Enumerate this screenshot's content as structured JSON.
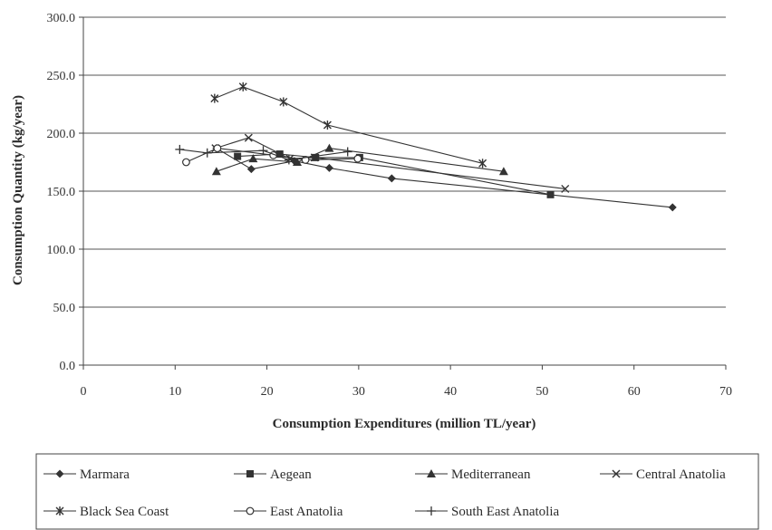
{
  "chart_data": {
    "type": "line",
    "title": "",
    "xlabel": "Consumption Expenditures (million TL/year)",
    "ylabel": "Consumption Quantity (kg/year)",
    "xlim": [
      0,
      70
    ],
    "ylim": [
      0,
      300
    ],
    "x_ticks": [
      0,
      10,
      20,
      30,
      40,
      50,
      60,
      70
    ],
    "x_tick_labels": [
      "0",
      "10",
      "20",
      "30",
      "40",
      "50",
      "60",
      "70"
    ],
    "y_ticks": [
      0,
      50,
      100,
      150,
      200,
      250,
      300
    ],
    "y_tick_labels": [
      "0.0",
      "50.0",
      "100.0",
      "150.0",
      "200.0",
      "250.0",
      "300.0"
    ],
    "grid": "horizontal",
    "legend_position": "bottom",
    "colors": {
      "series": "#333333",
      "grid": "#555555",
      "axis": "#444444"
    },
    "series": [
      {
        "name": "Marmara",
        "marker": "diamond",
        "points": [
          [
            14.5,
            187
          ],
          [
            18.3,
            169
          ],
          [
            23.0,
            176
          ],
          [
            26.8,
            170
          ],
          [
            33.6,
            161
          ],
          [
            64.2,
            136
          ]
        ]
      },
      {
        "name": "Aegean",
        "marker": "square",
        "points": [
          [
            16.8,
            180
          ],
          [
            21.4,
            182
          ],
          [
            25.3,
            179
          ],
          [
            30.1,
            179
          ],
          [
            50.9,
            147
          ]
        ]
      },
      {
        "name": "Mediterranean",
        "marker": "triangle",
        "points": [
          [
            14.5,
            167
          ],
          [
            18.5,
            178
          ],
          [
            23.3,
            175
          ],
          [
            26.8,
            187
          ],
          [
            45.8,
            167
          ]
        ]
      },
      {
        "name": "Central Anatolia",
        "marker": "x",
        "points": [
          [
            14.4,
            187
          ],
          [
            18.0,
            196
          ],
          [
            22.5,
            178
          ],
          [
            25.2,
            179
          ],
          [
            52.5,
            152
          ]
        ]
      },
      {
        "name": "Black Sea Coast",
        "marker": "asterisk",
        "points": [
          [
            14.3,
            230
          ],
          [
            17.4,
            240
          ],
          [
            21.8,
            227
          ],
          [
            26.6,
            207
          ],
          [
            43.5,
            174
          ]
        ]
      },
      {
        "name": "East Anatolia",
        "marker": "circle",
        "points": [
          [
            11.2,
            175
          ],
          [
            14.6,
            187
          ],
          [
            20.7,
            181
          ],
          [
            24.2,
            177
          ],
          [
            29.9,
            178
          ]
        ]
      },
      {
        "name": "South East Anatolia",
        "marker": "plus",
        "points": [
          [
            10.5,
            186
          ],
          [
            13.5,
            183
          ],
          [
            19.6,
            185
          ],
          [
            22.4,
            177
          ],
          [
            28.8,
            184
          ]
        ]
      }
    ]
  }
}
